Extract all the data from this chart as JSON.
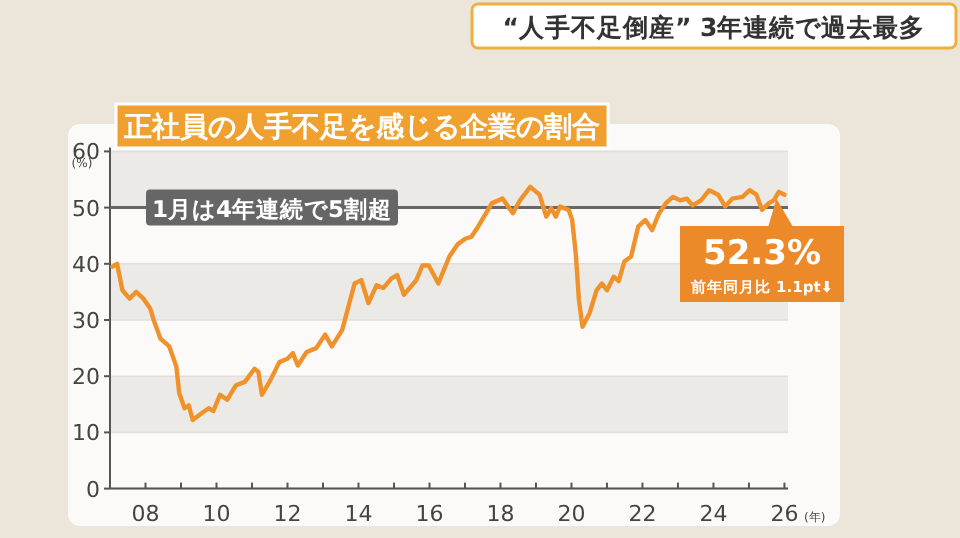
{
  "chart_data": {
    "type": "line",
    "title": "“人手不足倒産” 3年連続で過去最多",
    "subtitle": "正社員の人手不足を感じる企業の割合",
    "xlabel": "(年)",
    "ylabel": "(%)",
    "xlim": [
      2007,
      2026.1
    ],
    "ylim": [
      0,
      60
    ],
    "yticks": [
      0,
      10,
      20,
      30,
      40,
      50,
      60
    ],
    "xticks": [
      {
        "value": 2008,
        "label": "08"
      },
      {
        "value": 2009,
        "label": null
      },
      {
        "value": 2010,
        "label": "10"
      },
      {
        "value": 2011,
        "label": null
      },
      {
        "value": 2012,
        "label": "12"
      },
      {
        "value": 2013,
        "label": null
      },
      {
        "value": 2014,
        "label": "14"
      },
      {
        "value": 2015,
        "label": null
      },
      {
        "value": 2016,
        "label": "16"
      },
      {
        "value": 2017,
        "label": null
      },
      {
        "value": 2018,
        "label": "18"
      },
      {
        "value": 2019,
        "label": null
      },
      {
        "value": 2020,
        "label": "20"
      },
      {
        "value": 2021,
        "label": null
      },
      {
        "value": 2022,
        "label": "22"
      },
      {
        "value": 2023,
        "label": null
      },
      {
        "value": 2024,
        "label": "24"
      },
      {
        "value": 2025,
        "label": null
      },
      {
        "value": 2026,
        "label": "26"
      }
    ],
    "grid": "y",
    "marker": "none",
    "line_style": "solid",
    "ref_lines": [
      {
        "axis": "y",
        "value": 50,
        "label": "1月は4年連続で5割超",
        "color": "#666666"
      }
    ],
    "annotations": [
      {
        "text": "52.3%",
        "x": 2026,
        "y": 52.3
      },
      "前年同月比 1.1pt⬇"
    ],
    "series": [
      {
        "color": "#f0922b",
        "x": [
          2007.07,
          2007.2,
          2007.35,
          2007.55,
          2007.74,
          2007.94,
          2008.13,
          2008.23,
          2008.42,
          2008.67,
          2008.87,
          2008.95,
          2009.1,
          2009.22,
          2009.33,
          2009.58,
          2009.78,
          2009.91,
          2010.1,
          2010.3,
          2010.55,
          2010.8,
          2011.07,
          2011.18,
          2011.28,
          2011.52,
          2011.77,
          2012,
          2012.15,
          2012.29,
          2012.54,
          2012.81,
          2013.06,
          2013.25,
          2013.54,
          2013.89,
          2014.08,
          2014.28,
          2014.51,
          2014.7,
          2014.93,
          2015.09,
          2015.28,
          2015.63,
          2015.8,
          2015.98,
          2016.25,
          2016.56,
          2016.8,
          2017.02,
          2017.18,
          2017.37,
          2017.76,
          2018.06,
          2018.19,
          2018.35,
          2018.55,
          2018.84,
          2019.1,
          2019.29,
          2019.43,
          2019.56,
          2019.68,
          2019.92,
          2020.02,
          2020.12,
          2020.21,
          2020.31,
          2020.51,
          2020.71,
          2020.86,
          2021,
          2021.19,
          2021.33,
          2021.49,
          2021.68,
          2021.88,
          2022.08,
          2022.27,
          2022.47,
          2022.66,
          2022.86,
          2023.06,
          2023.25,
          2023.41,
          2023.65,
          2023.88,
          2024.13,
          2024.33,
          2024.53,
          2024.82,
          2025.02,
          2025.21,
          2025.37,
          2025.56,
          2025.7,
          2025.84,
          2026
        ],
        "values": [
          39.5,
          40,
          35.3,
          33.8,
          35,
          33.8,
          32.1,
          30,
          26.7,
          25.3,
          21.7,
          17,
          14.3,
          14.8,
          12.2,
          13.4,
          14.3,
          13.8,
          16.7,
          15.8,
          18.4,
          19,
          21.3,
          20.8,
          16.7,
          19.3,
          22.5,
          23.1,
          24.1,
          21.9,
          24.3,
          25,
          27.4,
          25.3,
          28.2,
          36.5,
          37.1,
          33,
          36.2,
          35.7,
          37.4,
          38,
          34.5,
          37.1,
          39.7,
          39.7,
          36.5,
          41.3,
          43.5,
          44.5,
          44.8,
          46.6,
          50.8,
          51.6,
          50.4,
          49,
          51.3,
          53.7,
          52.3,
          48.4,
          49.9,
          48.4,
          50.2,
          49.6,
          47.8,
          41.9,
          33.6,
          28.8,
          31.2,
          35.3,
          36.5,
          35.3,
          37.7,
          36.9,
          40.4,
          41.3,
          46.6,
          47.8,
          46,
          49,
          50.8,
          51.9,
          51.3,
          51.6,
          50.4,
          51.3,
          53.1,
          52.3,
          50.2,
          51.6,
          51.9,
          53.1,
          52.3,
          49.6,
          50.8,
          51.3,
          52.8,
          52.3
        ]
      }
    ]
  }
}
